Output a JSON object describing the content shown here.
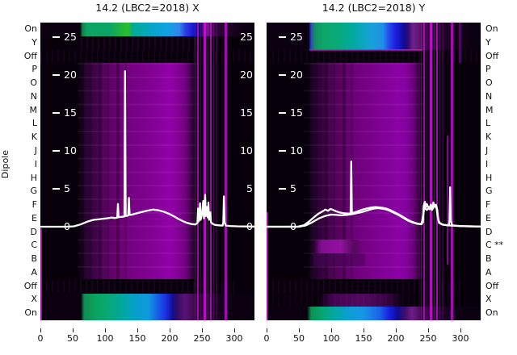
{
  "figure": {
    "left_title": "14.2 (LBC2=2018) X",
    "right_title": "14.2 (LBC2=2018) Y",
    "y_axis_label": "Dipole"
  },
  "rows_left": [
    "On",
    "Y",
    "Off",
    "P",
    "O",
    "N",
    "M",
    "L",
    "K",
    "J",
    "I",
    "H",
    "G",
    "F",
    "E",
    "D",
    "C",
    "B",
    "A",
    "Off",
    "X",
    "On"
  ],
  "rows_right": [
    "On",
    "Y",
    "Off",
    "P",
    "O",
    "N",
    "M",
    "L",
    "K",
    "J",
    "I",
    "H",
    "G",
    "F",
    "E",
    "D",
    "C **",
    "B",
    "A",
    "Off",
    "X",
    "On"
  ],
  "colors": {
    "background": "#ffffff",
    "heatmap_dark": "#07000a",
    "heatmap_magenta": "#8a01a0",
    "band_green": "#0aa566",
    "band_cyan": "#06a4cc",
    "band_blue": "#1c17d2",
    "streak_magenta": "#c013c9",
    "overlay_line": "#ffffff",
    "text": "#111111"
  },
  "chart_data": [
    {
      "type": "heatmap",
      "panel": "X dipole",
      "title": "14.2 (LBC2=2018) X",
      "x_axis": {
        "min": 0,
        "max": 331,
        "ticks": [
          0,
          50,
          100,
          150,
          200,
          250,
          300
        ]
      },
      "row_categories": [
        "On",
        "Y",
        "Off",
        "P",
        "O",
        "N",
        "M",
        "L",
        "K",
        "J",
        "I",
        "H",
        "G",
        "F",
        "E",
        "D",
        "C",
        "B",
        "A",
        "Off",
        "X",
        "On"
      ],
      "value_ticks": [
        25,
        20,
        15,
        10,
        5,
        0
      ],
      "value_tick_sides": [
        "left",
        "right"
      ],
      "bands": [
        {
          "rows": [
            "On"
          ],
          "x_range": [
            65,
            250
          ],
          "desc": "bright green-cyan-blue calibration band (top)"
        },
        {
          "rows": [
            "P",
            "O",
            "N",
            "M",
            "L",
            "K",
            "J",
            "I",
            "H",
            "G",
            "F",
            "E",
            "D",
            "C",
            "B",
            "A"
          ],
          "x_range": [
            65,
            235
          ],
          "desc": "broad magenta emission block, brightest near x=140-200"
        },
        {
          "rows": [
            "Off",
            "X",
            "On"
          ],
          "x_range": [
            65,
            220
          ],
          "desc": "bright green-cyan-blue calibration band (bottom, two rows)"
        },
        {
          "rows": [
            "all"
          ],
          "x_range": [
            238,
            290
          ],
          "desc": "narrow magenta RFI streaks near x=245-275 and x=285"
        }
      ],
      "line_overlay": {
        "units": "same value scale as internal ticks (0-25)",
        "series": [
          {
            "name": "mean spectrum X",
            "points": [
              [
                0,
                0
              ],
              [
                40,
                0
              ],
              [
                52,
                0.05
              ],
              [
                62,
                0.3
              ],
              [
                72,
                0.65
              ],
              [
                82,
                0.9
              ],
              [
                92,
                1.0
              ],
              [
                102,
                1.1
              ],
              [
                110,
                1.2
              ],
              [
                115,
                1.15
              ],
              [
                119,
                1.2
              ],
              [
                120,
                3.0
              ],
              [
                121,
                1.25
              ],
              [
                125,
                1.3
              ],
              [
                130,
                1.35
              ],
              [
                131,
                20.5
              ],
              [
                132,
                1.4
              ],
              [
                135,
                1.45
              ],
              [
                136,
                1.5
              ],
              [
                137,
                3.8
              ],
              [
                138,
                1.55
              ],
              [
                142,
                1.6
              ],
              [
                148,
                1.75
              ],
              [
                155,
                1.9
              ],
              [
                162,
                2.05
              ],
              [
                168,
                2.15
              ],
              [
                174,
                2.25
              ],
              [
                180,
                2.2
              ],
              [
                186,
                2.1
              ],
              [
                192,
                1.95
              ],
              [
                199,
                1.7
              ],
              [
                206,
                1.4
              ],
              [
                213,
                1.05
              ],
              [
                220,
                0.75
              ],
              [
                227,
                0.5
              ],
              [
                234,
                0.35
              ],
              [
                240,
                0.3
              ],
              [
                243,
                0.5
              ],
              [
                244,
                2.4
              ],
              [
                245,
                0.7
              ],
              [
                246,
                1.0
              ],
              [
                247,
                3.1
              ],
              [
                248,
                0.9
              ],
              [
                250,
                1.6
              ],
              [
                252,
                3.4
              ],
              [
                253,
                1.1
              ],
              [
                255,
                4.2
              ],
              [
                256,
                1.4
              ],
              [
                258,
                2.6
              ],
              [
                259,
                1.2
              ],
              [
                260,
                3.2
              ],
              [
                261,
                0.9
              ],
              [
                263,
                1.9
              ],
              [
                264,
                0.6
              ],
              [
                266,
                0.4
              ],
              [
                270,
                0.25
              ],
              [
                276,
                0.18
              ],
              [
                282,
                0.15
              ],
              [
                283,
                0.6
              ],
              [
                284,
                4.0
              ],
              [
                285,
                0.6
              ],
              [
                287,
                0.15
              ],
              [
                293,
                0.1
              ],
              [
                305,
                0.05
              ],
              [
                331,
                0.02
              ]
            ]
          }
        ]
      }
    },
    {
      "type": "heatmap",
      "panel": "Y dipole",
      "title": "14.2 (LBC2=2018) Y",
      "x_axis": {
        "min": 0,
        "max": 331,
        "ticks": [
          0,
          50,
          100,
          150,
          200,
          250,
          300
        ]
      },
      "row_categories": [
        "On",
        "Y",
        "Off",
        "P",
        "O",
        "N",
        "M",
        "L",
        "K",
        "J",
        "I",
        "H",
        "G",
        "F",
        "E",
        "D",
        "C **",
        "B",
        "A",
        "Off",
        "X",
        "On"
      ],
      "value_ticks": [
        25,
        20,
        15,
        10,
        5,
        0
      ],
      "value_tick_sides": [
        "left"
      ],
      "flagged_row": "C **",
      "bands": [
        {
          "rows": [
            "On",
            "Y"
          ],
          "x_range": [
            65,
            240
          ],
          "desc": "bright green-cyan-blue calibration band (top, two rows)"
        },
        {
          "rows": [
            "P",
            "O",
            "N",
            "M",
            "L",
            "K",
            "J",
            "I",
            "H",
            "G",
            "F",
            "E",
            "D",
            "C",
            "B",
            "A"
          ],
          "x_range": [
            65,
            240
          ],
          "desc": "broad magenta emission block, brightest near x=140-215"
        },
        {
          "rows": [
            "C"
          ],
          "x_range": [
            72,
            145
          ],
          "desc": "bright magenta segment on flagged row C"
        },
        {
          "rows": [
            "A"
          ],
          "x_range": [
            80,
            210
          ],
          "desc": "dim purple blob"
        },
        {
          "rows": [
            "On"
          ],
          "x_range": [
            65,
            230
          ],
          "desc": "bright green-cyan-blue calibration band (bottom row)"
        },
        {
          "rows": [
            "all"
          ],
          "x_range": [
            238,
            290
          ],
          "desc": "narrow magenta RFI streaks near x=245-275 and x=285"
        }
      ],
      "line_overlay": {
        "units": "same value scale as internal ticks (0-25)",
        "series": [
          {
            "name": "mean spectrum Y",
            "points": [
              [
                0,
                0
              ],
              [
                48,
                0
              ],
              [
                58,
                0.2
              ],
              [
                66,
                0.7
              ],
              [
                74,
                1.3
              ],
              [
                80,
                1.7
              ],
              [
                86,
                2.0
              ],
              [
                91,
                2.25
              ],
              [
                95,
                2.1
              ],
              [
                99,
                2.35
              ],
              [
                103,
                2.2
              ],
              [
                107,
                2.05
              ],
              [
                112,
                1.9
              ],
              [
                118,
                1.8
              ],
              [
                124,
                1.75
              ],
              [
                129,
                1.75
              ],
              [
                130,
                1.78
              ],
              [
                131,
                8.6
              ],
              [
                132,
                1.8
              ],
              [
                137,
                1.9
              ],
              [
                143,
                2.1
              ],
              [
                150,
                2.3
              ],
              [
                157,
                2.45
              ],
              [
                163,
                2.55
              ],
              [
                169,
                2.6
              ],
              [
                174,
                2.55
              ],
              [
                179,
                2.5
              ],
              [
                185,
                2.4
              ],
              [
                191,
                2.2
              ],
              [
                197,
                1.95
              ],
              [
                204,
                1.65
              ],
              [
                211,
                1.3
              ],
              [
                218,
                0.95
              ],
              [
                225,
                0.65
              ],
              [
                232,
                0.45
              ],
              [
                238,
                0.35
              ],
              [
                242,
                0.6
              ],
              [
                243,
                2.7
              ],
              [
                245,
                3.3
              ],
              [
                246,
                2.4
              ],
              [
                248,
                3.0
              ],
              [
                250,
                2.6
              ],
              [
                252,
                2.3
              ],
              [
                254,
                2.9
              ],
              [
                256,
                2.4
              ],
              [
                258,
                3.2
              ],
              [
                260,
                2.7
              ],
              [
                262,
                2.9
              ],
              [
                264,
                2.3
              ],
              [
                265,
                1.5
              ],
              [
                266,
                0.8
              ],
              [
                268,
                0.5
              ],
              [
                272,
                0.3
              ],
              [
                277,
                0.22
              ],
              [
                282,
                0.2
              ],
              [
                283,
                0.8
              ],
              [
                284,
                5.2
              ],
              [
                285,
                0.8
              ],
              [
                287,
                0.2
              ],
              [
                294,
                0.12
              ],
              [
                305,
                0.06
              ],
              [
                331,
                0.02
              ]
            ]
          },
          {
            "name": "second scan Y",
            "points": [
              [
                0,
                0
              ],
              [
                50,
                0
              ],
              [
                60,
                0.15
              ],
              [
                70,
                0.55
              ],
              [
                80,
                1.05
              ],
              [
                90,
                1.4
              ],
              [
                100,
                1.6
              ],
              [
                108,
                1.55
              ],
              [
                116,
                1.5
              ],
              [
                124,
                1.55
              ],
              [
                132,
                1.65
              ],
              [
                140,
                1.8
              ],
              [
                148,
                1.95
              ],
              [
                156,
                2.15
              ],
              [
                164,
                2.35
              ],
              [
                170,
                2.45
              ],
              [
                177,
                2.4
              ],
              [
                184,
                2.3
              ],
              [
                191,
                2.1
              ],
              [
                198,
                1.8
              ],
              [
                205,
                1.5
              ],
              [
                212,
                1.15
              ],
              [
                219,
                0.8
              ],
              [
                226,
                0.55
              ],
              [
                233,
                0.38
              ],
              [
                240,
                0.32
              ],
              [
                244,
                2.5
              ],
              [
                248,
                2.2
              ],
              [
                252,
                2.6
              ],
              [
                256,
                2.2
              ],
              [
                260,
                2.8
              ],
              [
                263,
                2.4
              ],
              [
                265,
                1.2
              ],
              [
                267,
                0.5
              ],
              [
                272,
                0.28
              ],
              [
                280,
                0.18
              ],
              [
                300,
                0.08
              ],
              [
                331,
                0.02
              ]
            ]
          }
        ]
      }
    }
  ],
  "streaks": {
    "group_main": [
      {
        "x": 191,
        "w": 1,
        "c": "rgba(160,8,178,0.5)"
      },
      {
        "x": 194,
        "w": 2,
        "c": "rgba(190,10,205,0.8)"
      },
      {
        "x": 198,
        "w": 1,
        "c": "rgba(120,6,135,0.45)"
      },
      {
        "x": 202,
        "w": 3,
        "c": "rgba(205,12,220,0.9)"
      },
      {
        "x": 207,
        "w": 1,
        "c": "rgba(150,8,165,0.55)"
      },
      {
        "x": 210,
        "w": 2,
        "c": "rgba(185,10,200,0.85)"
      },
      {
        "x": 214,
        "w": 1,
        "c": "rgba(130,7,150,0.5)"
      },
      {
        "x": 217,
        "w": 2,
        "c": "rgba(100,5,115,0.45)"
      },
      {
        "x": 228,
        "w": 3,
        "c": "rgba(195,10,210,0.85)"
      }
    ],
    "right_extra": [
      {
        "x": 223,
        "w": 2,
        "c": "rgba(170,9,190,0.7), partial height"
      },
      {
        "x": 238,
        "w": 3,
        "c": "rgba(90,10,110,0.8), top rows only"
      }
    ]
  }
}
